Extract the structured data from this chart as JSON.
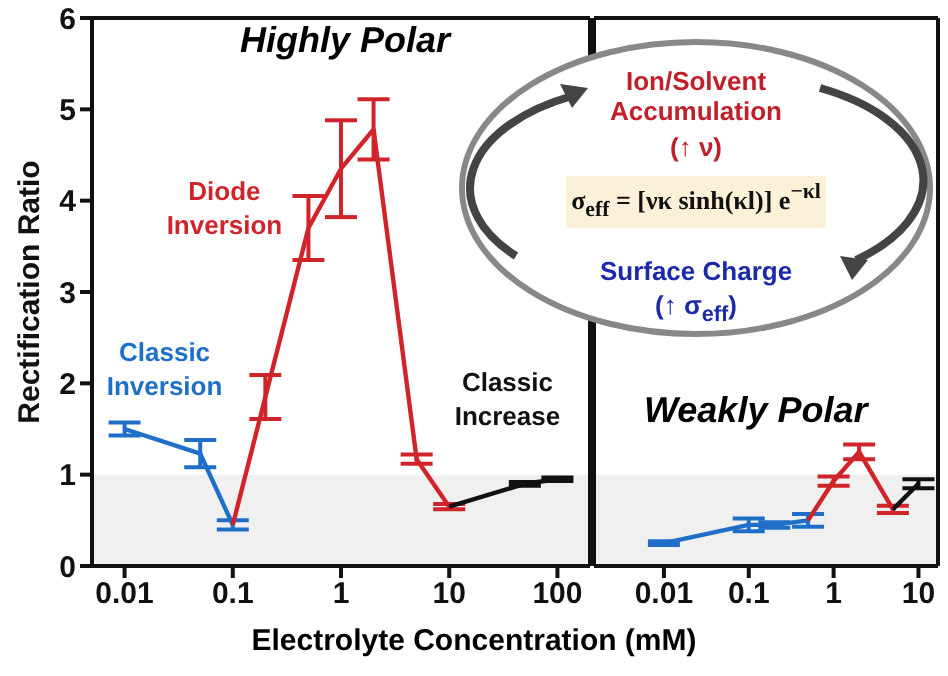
{
  "chart_data": [
    {
      "type": "line",
      "title": "Highly Polar",
      "xlabel": "Electrolyte Concentration (mM)",
      "ylabel": "Rectification Ratio",
      "log": "x",
      "marker": "none",
      "xlim": [
        0.005,
        200
      ],
      "xticks": [
        0.01,
        0.1,
        1,
        10,
        100
      ],
      "ylim": [
        0,
        6
      ],
      "yticks": [
        0,
        1,
        2,
        3,
        4,
        5,
        6
      ],
      "bands": [
        {
          "axis": "y",
          "from": 0,
          "to": 1,
          "color": "#f0f0f0"
        }
      ],
      "series": [
        {
          "name": "Classic Inversion",
          "color": "#1f6fc8",
          "x": [
            0.01,
            0.05,
            0.1
          ],
          "values": [
            1.5,
            1.23,
            0.45
          ],
          "errors": [
            0.07,
            0.15,
            0.05
          ]
        },
        {
          "name": "Diode Inversion",
          "color": "#d0242b",
          "x": [
            0.1,
            0.2,
            0.5,
            1,
            2,
            5,
            10
          ],
          "values": [
            0.45,
            1.85,
            3.7,
            4.35,
            4.78,
            1.17,
            0.65
          ],
          "errors": [
            null,
            0.24,
            0.35,
            0.53,
            0.33,
            0.05,
            0.03
          ]
        },
        {
          "name": "Classic Increase",
          "color": "#111111",
          "x": [
            10,
            50,
            100
          ],
          "values": [
            0.65,
            0.9,
            0.95
          ],
          "errors": [
            null,
            0.02,
            0.02
          ]
        }
      ],
      "annotations": [
        "Ion/Solvent Accumulation",
        "(↑ ν)",
        "σ$_{eff}$ = [νκ sinh(κl)] e$^{−κl}$",
        "Surface Charge",
        "(↑ σ$_{eff}$)"
      ]
    },
    {
      "type": "line",
      "title": "Weakly Polar",
      "log": "x",
      "marker": "none",
      "xlim": [
        0.0015,
        17
      ],
      "xticks": [
        0.01,
        0.1,
        1,
        10
      ],
      "ylim": [
        0,
        6
      ],
      "tick_labels": "x",
      "bands": [
        {
          "axis": "y",
          "from": 0,
          "to": 1,
          "color": "#f0f0f0"
        }
      ],
      "series": [
        {
          "color": "#1f6fc8",
          "x": [
            0.01,
            0.1,
            0.2,
            0.5
          ],
          "values": [
            0.25,
            0.45,
            0.45,
            0.5
          ],
          "errors": [
            0.02,
            0.07,
            0.03,
            0.07
          ]
        },
        {
          "color": "#d0242b",
          "x": [
            0.5,
            1,
            2,
            5
          ],
          "values": [
            0.5,
            0.93,
            1.25,
            0.62
          ],
          "errors": [
            null,
            0.05,
            0.08,
            0.04
          ]
        },
        {
          "color": "#111111",
          "x": [
            5,
            10
          ],
          "values": [
            0.62,
            0.9
          ],
          "errors": [
            null,
            0.05
          ]
        }
      ]
    }
  ]
}
